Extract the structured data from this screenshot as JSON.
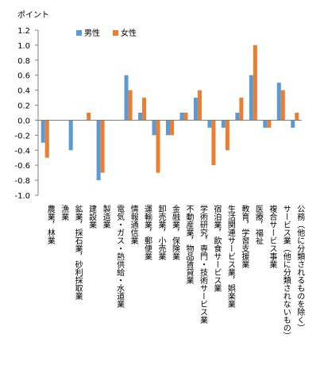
{
  "chart_data": {
    "type": "bar",
    "ylabel": "ポイント",
    "ylim": [
      -1.0,
      1.2
    ],
    "yticks": [
      "1.2",
      "1.0",
      "0.8",
      "0.6",
      "0.4",
      "0.2",
      "0.0",
      "-0.2",
      "-0.4",
      "-0.6",
      "-0.8",
      "-1.0"
    ],
    "categories": [
      "農業，林業",
      "漁業",
      "鉱業，採石業，砂利採取業",
      "建設業",
      "製造業",
      "電気・ガス・熱供給・水道業",
      "情報通信業",
      "運輸業，郵便業",
      "卸売業，小売業",
      "金融業，保険業",
      "不動産業，物品賃貸業",
      "学術研究，専門・技術サービス業",
      "宿泊業，飲食サービス業",
      "生活関連サービス業，娯楽業",
      "教育，学習支援業",
      "医療，福祉",
      "複合サービス事業",
      "サービス業（他に分類されないもの）",
      "公務（他に分類されるものを除く）"
    ],
    "series": [
      {
        "name": "男性",
        "color": "#5b9bd5",
        "values": [
          -0.3,
          0.0,
          -0.4,
          0.0,
          -0.8,
          0.0,
          0.6,
          0.1,
          -0.2,
          -0.2,
          0.1,
          0.3,
          -0.1,
          -0.1,
          0.1,
          0.6,
          -0.1,
          0.5,
          -0.1
        ]
      },
      {
        "name": "女性",
        "color": "#ed7d31",
        "values": [
          -0.5,
          0.0,
          0.0,
          0.1,
          -0.7,
          0.0,
          0.4,
          0.3,
          -0.7,
          -0.2,
          0.1,
          0.4,
          -0.6,
          -0.4,
          0.3,
          1.0,
          -0.1,
          0.4,
          0.1
        ]
      }
    ],
    "grid": false,
    "legend_position": "top"
  }
}
